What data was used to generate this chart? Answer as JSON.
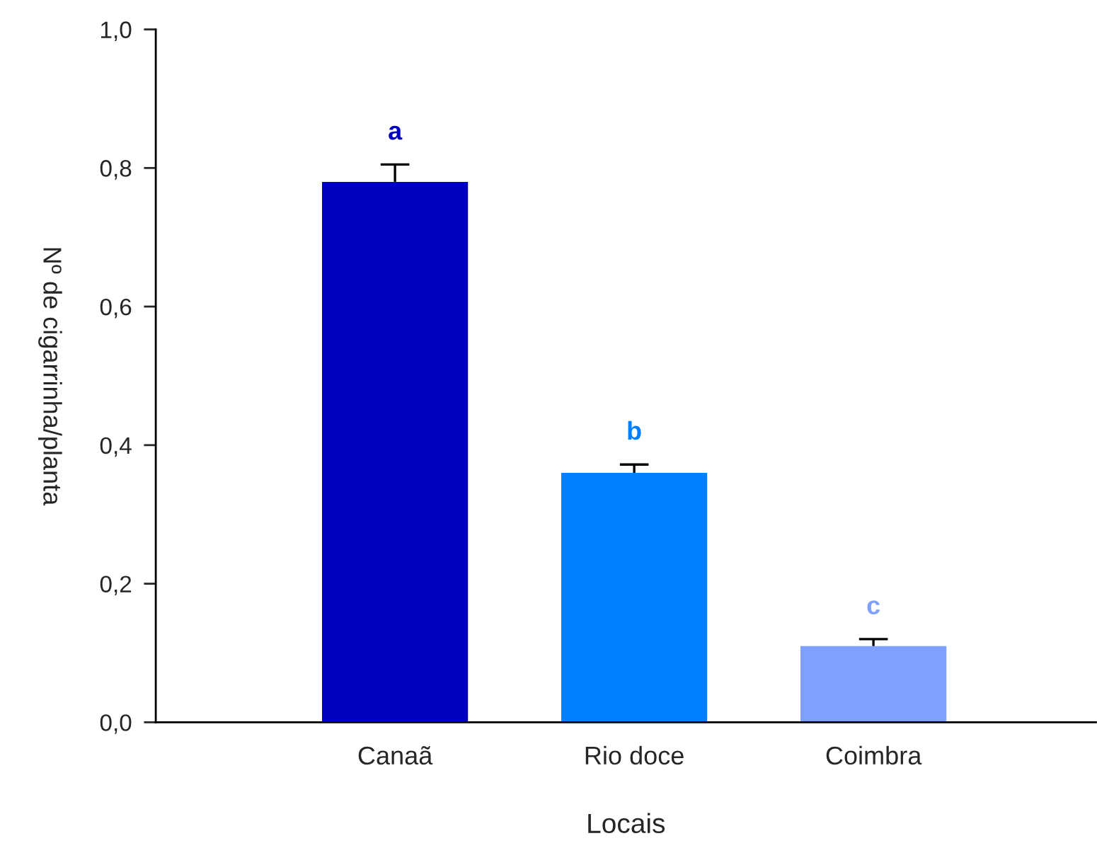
{
  "chart_data": {
    "type": "bar",
    "xlabel": "Locais",
    "ylabel": "Nº de cigarrinha/planta",
    "categories": [
      "Canaã",
      "Rio doce",
      "Coimbra"
    ],
    "values": [
      0.78,
      0.36,
      0.11
    ],
    "colors": [
      "#0000c0",
      "#0080ff",
      "#80a0ff"
    ],
    "errors": [
      0.025,
      0.012,
      0.01
    ],
    "ylim": [
      0,
      1.0
    ],
    "yticks": [
      {
        "value": 0,
        "label": "0,0"
      },
      {
        "value": 0.2,
        "label": "0,2"
      },
      {
        "value": 0.4,
        "label": "0,4"
      },
      {
        "value": 0.6,
        "label": "0,6"
      },
      {
        "value": 0.8,
        "label": "0,8"
      },
      {
        "value": 1.0,
        "label": "1,0"
      }
    ],
    "annotations": [
      "a",
      "b",
      "c"
    ],
    "grid": false,
    "legend": false
  }
}
